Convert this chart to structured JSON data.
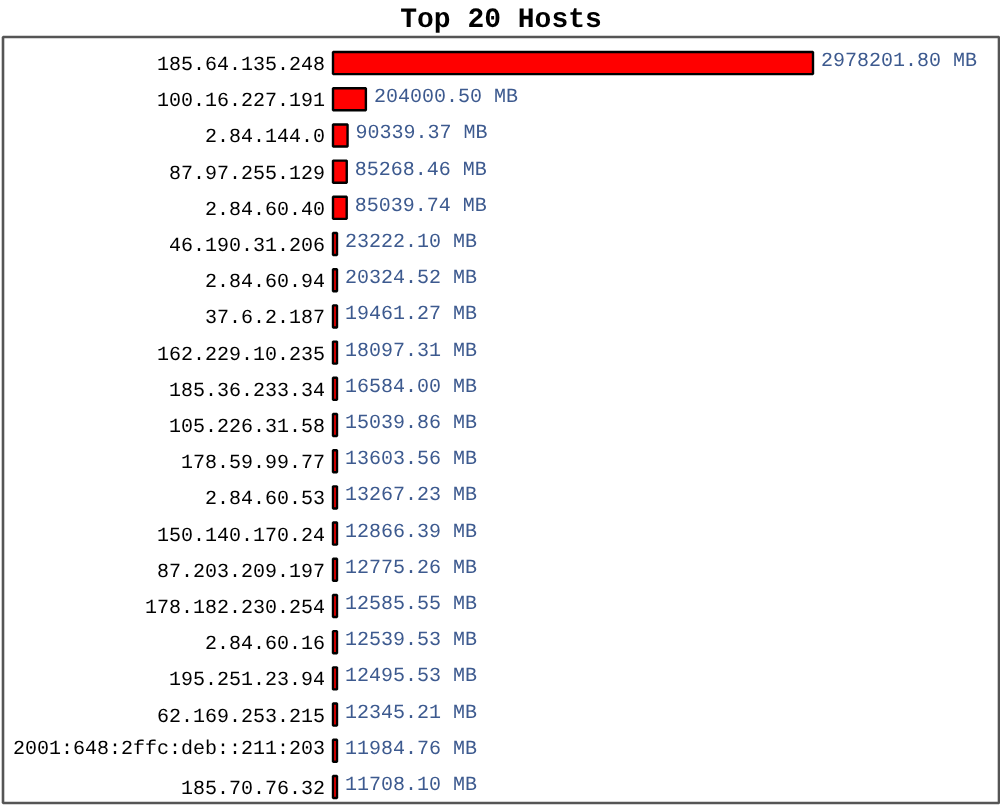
{
  "chart_data": {
    "type": "bar",
    "orientation": "horizontal",
    "title": "Top 20 Hosts",
    "categories": [
      "185.64.135.248",
      "100.16.227.191",
      "2.84.144.0",
      "87.97.255.129",
      "2.84.60.40",
      "46.190.31.206",
      "2.84.60.94",
      "37.6.2.187",
      "162.229.10.235",
      "185.36.233.34",
      "105.226.31.58",
      "178.59.99.77",
      "2.84.60.53",
      "150.140.170.24",
      "87.203.209.197",
      "178.182.230.254",
      "2.84.60.16",
      "195.251.23.94",
      "62.169.253.215",
      "2001:648:2ffc:deb::211:203",
      "185.70.76.32"
    ],
    "values": [
      2978201.8,
      204000.5,
      90339.37,
      85268.46,
      85039.74,
      23222.1,
      20324.52,
      19461.27,
      18097.31,
      16584.0,
      15039.86,
      13603.56,
      13267.23,
      12866.39,
      12775.26,
      12585.55,
      12539.53,
      12495.53,
      12345.21,
      11984.76,
      11708.1
    ],
    "value_labels": [
      "2978201.80 MB",
      "204000.50 MB",
      "90339.37 MB",
      "85268.46 MB",
      "85039.74 MB",
      "23222.10 MB",
      "20324.52 MB",
      "19461.27 MB",
      "18097.31 MB",
      "16584.00 MB",
      "15039.86 MB",
      "13603.56 MB",
      "13267.23 MB",
      "12866.39 MB",
      "12775.26 MB",
      "12585.55 MB",
      "12539.53 MB",
      "12495.53 MB",
      "12345.21 MB",
      "11984.76 MB",
      "11708.10 MB"
    ],
    "color": "#ff0000"
  }
}
